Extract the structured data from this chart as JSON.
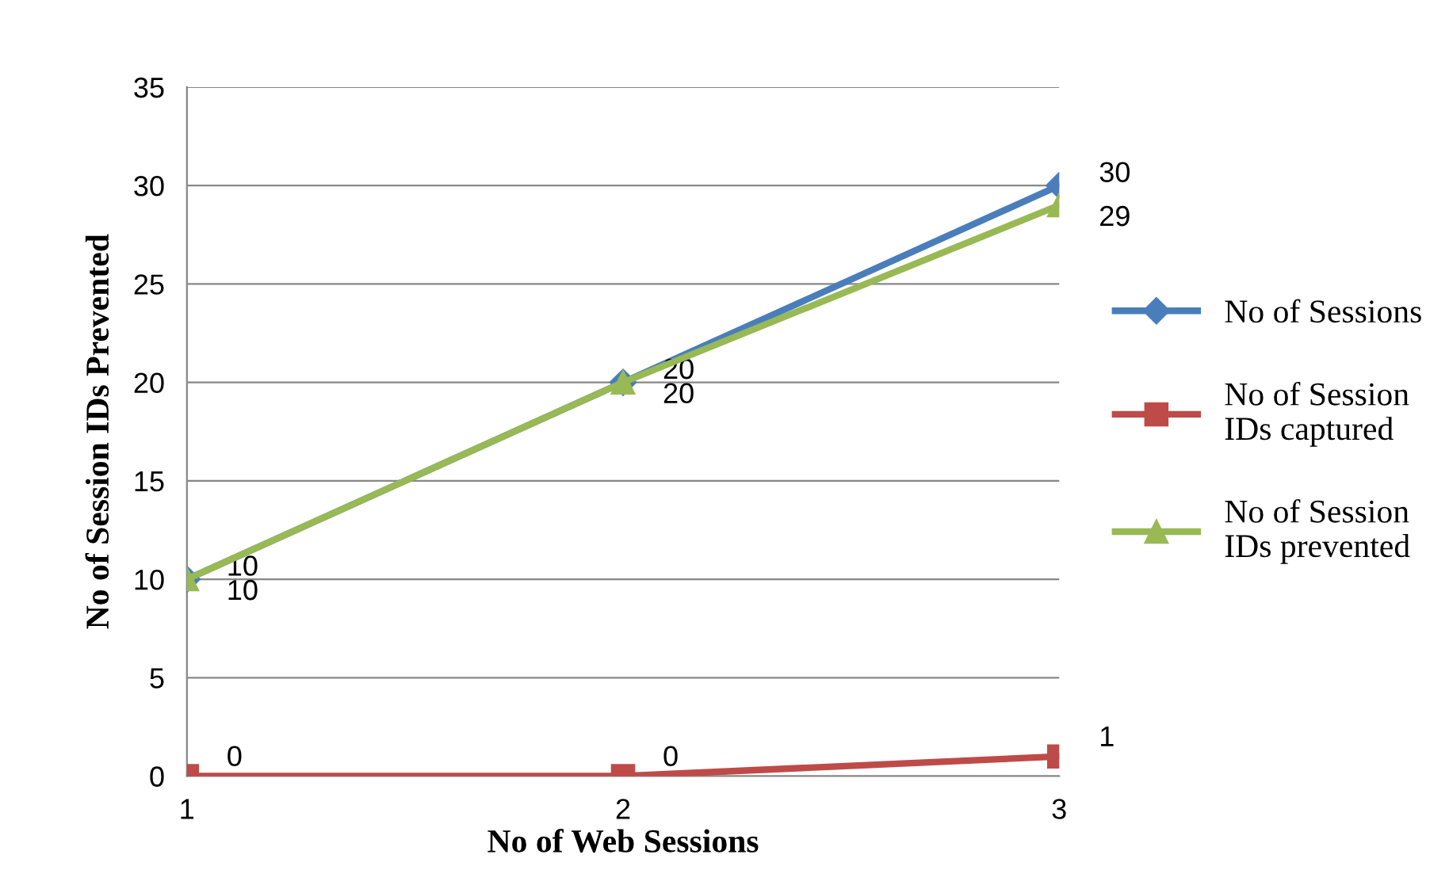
{
  "chart_data": {
    "type": "line",
    "xlabel": "No of Web Sessions",
    "ylabel": "No of Session IDs Prevented",
    "categories": [
      "1",
      "2",
      "3"
    ],
    "series": [
      {
        "name": "No of Sessions",
        "color": "#4a7ebb",
        "marker": "diamond",
        "values": [
          10,
          20,
          30
        ]
      },
      {
        "name": "No of Session IDs captured",
        "color": "#be4b48",
        "marker": "square",
        "values": [
          0,
          0,
          1
        ]
      },
      {
        "name": "No of Session IDs prevented",
        "color": "#98b954",
        "marker": "triangle",
        "values": [
          10,
          20,
          29
        ]
      }
    ],
    "ylim": [
      0,
      35
    ],
    "yticks": [
      0,
      5,
      10,
      15,
      20,
      25,
      30,
      35
    ],
    "grid": "y",
    "legend": "right",
    "data_labels": true
  }
}
